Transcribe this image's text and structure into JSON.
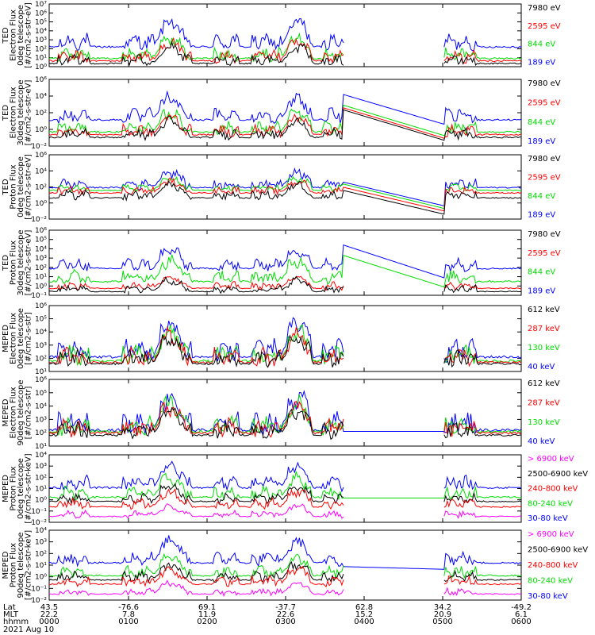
{
  "colors": {
    "blue": "#0000ff",
    "red": "#ff0000",
    "green": "#00dd00",
    "black": "#000000",
    "magenta": "#ff00ff"
  },
  "chart_data": {
    "type": "line",
    "date_label": "2021 Aug 10",
    "footer": {
      "row_labels": [
        "Lat",
        "MLT",
        "hhmm"
      ],
      "columns": [
        {
          "lat": "43.5",
          "mlt": "22.2",
          "hhmm": "0000"
        },
        {
          "lat": "-76.6",
          "mlt": "7.8",
          "hhmm": "0100"
        },
        {
          "lat": "69.1",
          "mlt": "11.9",
          "hhmm": "0200"
        },
        {
          "lat": "-37.7",
          "mlt": "22.6",
          "hhmm": "0300"
        },
        {
          "lat": "62.8",
          "mlt": "15.2",
          "hhmm": "0400"
        },
        {
          "lat": "34.2",
          "mlt": "20.9",
          "hhmm": "0500"
        },
        {
          "lat": "-49.2",
          "mlt": "6.1",
          "hhmm": "0600"
        }
      ]
    },
    "panels": [
      {
        "ylabel": [
          "TED",
          "Electron Flux",
          "0deg telescope",
          "[#/cm2-s-str-eV]"
        ],
        "yticks": [
          "10⁰",
          "10¹",
          "10²",
          "10³",
          "10⁴",
          "10⁵",
          "10⁶",
          "10⁷"
        ],
        "ylim_log10": [
          0,
          7
        ],
        "legend": [
          {
            "label": "7980 eV",
            "color": "black"
          },
          {
            "label": "2595 eV",
            "color": "red"
          },
          {
            "label": "844 eV",
            "color": "green"
          },
          {
            "label": "189 eV",
            "color": "blue"
          }
        ]
      },
      {
        "ylabel": [
          "TED",
          "Electron Flux",
          "30deg telescope",
          "[#/cm2-s-str-eV]"
        ],
        "yticks": [
          "10⁻²",
          "10⁰",
          "10²",
          "10⁴",
          "10⁶"
        ],
        "ylim_log10": [
          -2,
          6
        ],
        "legend": [
          {
            "label": "7980 eV",
            "color": "black"
          },
          {
            "label": "2595 eV",
            "color": "red"
          },
          {
            "label": "844 eV",
            "color": "green"
          },
          {
            "label": "189 eV",
            "color": "blue"
          }
        ]
      },
      {
        "ylabel": [
          "TED",
          "Proton Flux",
          "0deg telescope",
          "[#/cm2-s-str-eV]"
        ],
        "yticks": [
          "10⁻²",
          "10⁰",
          "10²",
          "10⁴",
          "10⁶"
        ],
        "ylim_log10": [
          -2,
          6
        ],
        "legend": [
          {
            "label": "7980 eV",
            "color": "black"
          },
          {
            "label": "2595 eV",
            "color": "red"
          },
          {
            "label": "844 eV",
            "color": "green"
          },
          {
            "label": "189 eV",
            "color": "blue"
          }
        ]
      },
      {
        "ylabel": [
          "TED",
          "Proton Flux",
          "30deg telescope",
          "[#/cm2-s-str-eV]"
        ],
        "yticks": [
          "10⁻¹",
          "10⁰",
          "10¹",
          "10²",
          "10³",
          "10⁴",
          "10⁵",
          "10⁶"
        ],
        "ylim_log10": [
          -1,
          6
        ],
        "legend": [
          {
            "label": "7980 eV",
            "color": "black"
          },
          {
            "label": "2595 eV",
            "color": "red"
          },
          {
            "label": "844 eV",
            "color": "green"
          },
          {
            "label": "189 eV",
            "color": "blue"
          }
        ]
      },
      {
        "ylabel": [
          "MEPED",
          "Electron Flux",
          "0deg telescope",
          "[#/cm2-s-str]"
        ],
        "yticks": [
          "10¹",
          "10²",
          "10³",
          "10⁴",
          "10⁵",
          "10⁶"
        ],
        "ylim_log10": [
          1,
          6
        ],
        "legend": [
          {
            "label": "612 keV",
            "color": "black"
          },
          {
            "label": "287 keV",
            "color": "red"
          },
          {
            "label": "130 keV",
            "color": "green"
          },
          {
            "label": "40 keV",
            "color": "blue"
          }
        ]
      },
      {
        "ylabel": [
          "MEPED",
          "Electron Flux",
          "90deg telescope",
          "[#/cm2-s-str]"
        ],
        "yticks": [
          "10¹",
          "10²",
          "10³",
          "10⁴",
          "10⁵",
          "10⁶"
        ],
        "ylim_log10": [
          1,
          6
        ],
        "legend": [
          {
            "label": "612 keV",
            "color": "black"
          },
          {
            "label": "287 keV",
            "color": "red"
          },
          {
            "label": "130 keV",
            "color": "green"
          },
          {
            "label": "40 keV",
            "color": "blue"
          }
        ]
      },
      {
        "ylabel": [
          "MEPED",
          "Proton Flux",
          "0deg telescope",
          "[#/cm2-s-str-keV]"
        ],
        "yticks": [
          "10⁻²",
          "10⁻¹",
          "10⁰",
          "10¹",
          "10²",
          "10³",
          "10⁴"
        ],
        "ylim_log10": [
          -2,
          4
        ],
        "legend": [
          {
            "label": "> 6900 keV",
            "color": "magenta"
          },
          {
            "label": "2500-6900 keV",
            "color": "black"
          },
          {
            "label": "240-800 keV",
            "color": "red"
          },
          {
            "label": "80-240 keV",
            "color": "green"
          },
          {
            "label": "30-80 keV",
            "color": "blue"
          }
        ]
      },
      {
        "ylabel": [
          "MEPED",
          "Proton Flux",
          "90deg telescope",
          "[#/cm2-s-str-keV]"
        ],
        "yticks": [
          "10⁻²",
          "10⁻¹",
          "10⁰",
          "10¹",
          "10²",
          "10³",
          "10⁴"
        ],
        "ylim_log10": [
          -2,
          4
        ],
        "legend": [
          {
            "label": "> 6900 keV",
            "color": "magenta"
          },
          {
            "label": "2500-6900 keV",
            "color": "black"
          },
          {
            "label": "240-800 keV",
            "color": "red"
          },
          {
            "label": "80-240 keV",
            "color": "green"
          },
          {
            "label": "30-80 keV",
            "color": "blue"
          }
        ]
      }
    ]
  }
}
